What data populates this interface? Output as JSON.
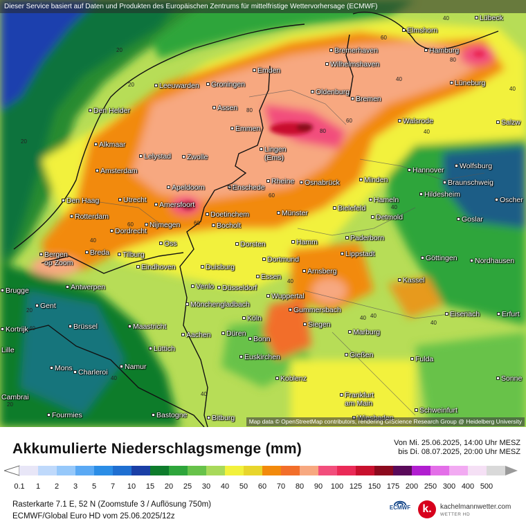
{
  "header": {
    "disclaimer": "Dieser Service basiert auf Daten und Produkten des Europäischen Zentrums für mittelfristige Wettervorhersage (ECMWF)"
  },
  "map": {
    "attribution": "Map data © OpenStreetMap contributors, rendering GIScience Research Group @ Heidelberg University",
    "cities": [
      "Lübeck",
      "Elmshorn",
      "Hamburg",
      "Bremerhaven",
      "Wilhelmshaven",
      "Lüneburg",
      "Emden",
      "Oldenburg",
      "Bremen",
      "Leeuwarden",
      "Groningen",
      "Den Helder",
      "Assen",
      "Emmen",
      "Walsrode",
      "Salzw",
      "Alkmaar",
      "Lelystad",
      "Zwolle",
      "Lingen (Ems)",
      "Hannover",
      "Wolfsburg",
      "Amsterdam",
      "Apeldoorn",
      "Enschede",
      "Rheine",
      "Osnabrück",
      "Minden",
      "Braunschweig",
      "Den Haag",
      "Utrecht",
      "Amersfoort",
      "Hildesheim",
      "Bielefeld",
      "Hameln",
      "Oscher",
      "Rotterdam",
      "Doetinchem",
      "Münster",
      "Detmold",
      "Goslar",
      "Dordrecht",
      "Nijmegen",
      "Bocholt",
      "Paderborn",
      "Oss",
      "Dorsten",
      "Hamm",
      "Lippstadt",
      "Bergen op Zoom",
      "Breda",
      "Tilburg",
      "Göttingen",
      "Nordhausen",
      "Eindhoven",
      "Duisburg",
      "Dortmund",
      "Arnsberg",
      "Antwerpen",
      "Essen",
      "Venlo",
      "Kassel",
      "Brugge",
      "Düsseldorf",
      "Wuppertal",
      "Gent",
      "Mönchengladbach",
      "Gummersbach",
      "Köln",
      "Eisenach",
      "Erfurt",
      "Brüssel",
      "Maastricht",
      "Siegen",
      "Kortrijk",
      "Aachen",
      "Düren",
      "Marburg",
      "Bonn",
      "Lüttich",
      "Lille",
      "Gießen",
      "Euskirchen",
      "Fulda",
      "Mons",
      "Charleroi",
      "Namur",
      "Sonne",
      "Koblenz",
      "Cambrai",
      "Frankfurt am Main",
      "Schweinfurt",
      "Fourmies",
      "Bastogne",
      "Bitburg",
      "Wiesbaden"
    ],
    "contour_labels": [
      "20",
      "20",
      "20",
      "40",
      "40",
      "40",
      "40",
      "40",
      "40",
      "40",
      "40",
      "40",
      "40",
      "40",
      "40",
      "40",
      "60",
      "60",
      "60",
      "60",
      "60",
      "60",
      "80",
      "80",
      "80",
      "20",
      "20"
    ]
  },
  "legend": {
    "title": "Akkumulierte Niederschlagsmenge (mm)",
    "period_from": "Von Mi. 25.06.2025, 14:00 Uhr MESZ",
    "period_to": "bis Di. 08.07.2025, 20:00 Uhr MESZ",
    "ticks": [
      "0.1",
      "1",
      "2",
      "3",
      "5",
      "7",
      "10",
      "15",
      "20",
      "25",
      "30",
      "40",
      "50",
      "60",
      "70",
      "80",
      "90",
      "100",
      "125",
      "150",
      "175",
      "200",
      "250",
      "300",
      "400",
      "500"
    ],
    "colors": [
      "#e8e6f7",
      "#bfd9fb",
      "#96c8fa",
      "#5aa9f4",
      "#2b8de6",
      "#1f6fd1",
      "#1a3fa6",
      "#0e7c2c",
      "#2ea53b",
      "#67c24a",
      "#a8d95a",
      "#f2f13c",
      "#e8d52c",
      "#f28a0c",
      "#f26e2a",
      "#f7a880",
      "#f24e7c",
      "#ea2a57",
      "#c8102e",
      "#8c0a1e",
      "#5a0a5a",
      "#b11ed0",
      "#e36ee8",
      "#f2aaf2",
      "#f5e0f5",
      "#d9d9d9"
    ]
  },
  "footer": {
    "raster_info": "Rasterkarte 7.1 E, 52 N  (Zoomstufe 3 / Auflösung 750m)",
    "model_info": "ECMWF/Global Euro HD vom  25.06.2025/12z",
    "ecmwf_label": "ECMWF",
    "brand_name": "kachelmannwetter.com",
    "brand_sub": "WETTER HD",
    "brand_mark": "k."
  }
}
